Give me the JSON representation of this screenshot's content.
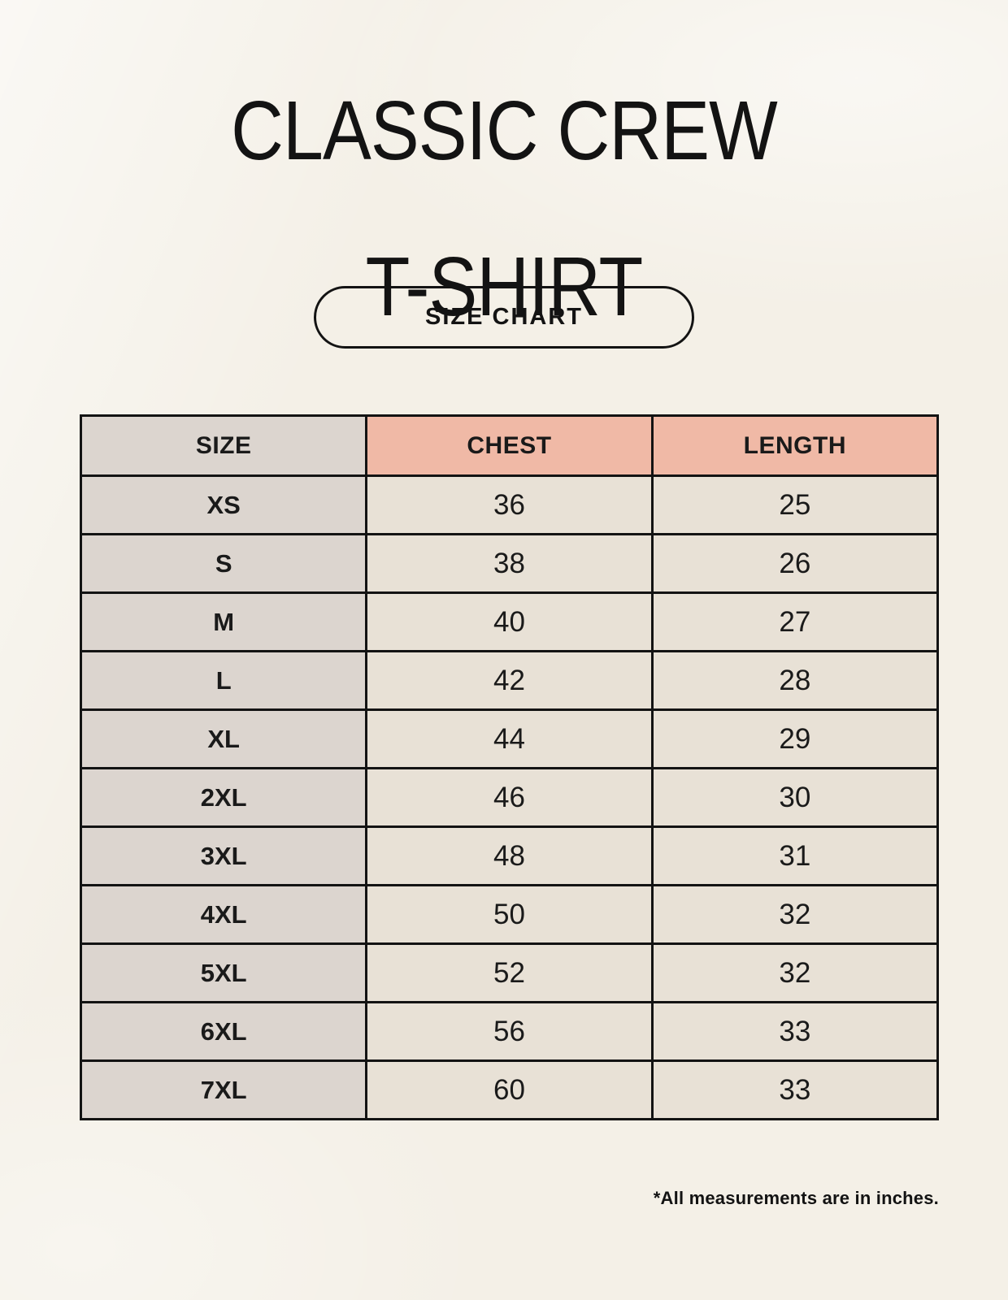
{
  "page": {
    "title": {
      "line1": "CLASSIC CREW",
      "line2": "T-SHIRT"
    },
    "size_chart_button": "SIZE CHART",
    "footnote": "*All measurements are in inches."
  },
  "colors": {
    "background": "#f4f0e7",
    "header_accent": "#f0b9a6",
    "size_column": "#dcd5cf",
    "cell": "#e8e1d6",
    "border": "#131313",
    "text": "#1a1a1a"
  },
  "chart_data": {
    "type": "table",
    "title": "CLASSIC CREW T-SHIRT — SIZE CHART",
    "units": "inches",
    "columns": [
      "SIZE",
      "CHEST",
      "LENGTH"
    ],
    "rows": [
      [
        "XS",
        "36",
        "25"
      ],
      [
        "S",
        "38",
        "26"
      ],
      [
        "M",
        "40",
        "27"
      ],
      [
        "L",
        "42",
        "28"
      ],
      [
        "XL",
        "44",
        "29"
      ],
      [
        "2XL",
        "46",
        "30"
      ],
      [
        "3XL",
        "48",
        "31"
      ],
      [
        "4XL",
        "50",
        "32"
      ],
      [
        "5XL",
        "52",
        "32"
      ],
      [
        "6XL",
        "56",
        "33"
      ],
      [
        "7XL",
        "60",
        "33"
      ]
    ]
  }
}
